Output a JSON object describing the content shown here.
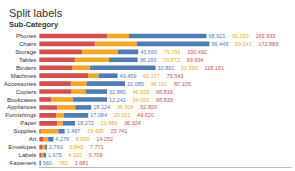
{
  "chart_data": {
    "type": "bar",
    "title": "Split labels",
    "subtitle": "Sub-Category",
    "orientation": "horizontal",
    "stacked": true,
    "categories": [
      "Phones",
      "Chairs",
      "Storage",
      "Tables",
      "Binders",
      "Machines",
      "Accessories",
      "Copiers",
      "Bookcases",
      "Appliances",
      "Furnishings",
      "Paper",
      "Supplies",
      "Art",
      "Envelopes",
      "Labels",
      "Fasteners"
    ],
    "series": [
      {
        "color": "#d4504e",
        "values": [
          68921,
          56445,
          43560,
          36160,
          33891,
          49459,
          32085,
          32880,
          12241,
          18124,
          17084,
          18272,
          1497,
          4276,
          2763,
          1675,
          560
        ]
      },
      {
        "color": "#f5a623",
        "values": [
          22232,
          42696,
          36231,
          34712,
          17669,
          10818,
          16106,
          13949,
          21765,
          18385,
          7917,
          5611,
          17938,
          4714,
          3080,
          2427,
          223
        ]
      },
      {
        "color": "#4e7db5",
        "values": [
          78780,
          73742,
          20701,
          29062,
          66601,
          19266,
          38914,
          21990,
          34827,
          16311,
          24619,
          12441,
          6306,
          5262,
          1928,
          2607,
          898
        ]
      }
    ],
    "annotations": [
      {
        "color": "#4e7db5",
        "labels": [
          "68.921",
          "56.445",
          "43.560",
          "36.160",
          "33.891",
          "49.459",
          "32.085",
          "32.880",
          "12.241",
          "18.124",
          "17.084",
          "18.272",
          "1.497",
          "4.276",
          "2.763",
          "1.675",
          "560"
        ]
      },
      {
        "color": "#f5a623",
        "labels": [
          "91.153",
          "99.141",
          "79.791",
          "70.872",
          "51.560",
          "60.277",
          "48.191",
          "46.829",
          "34.006",
          "36.509",
          "25.001",
          "23.883",
          "19.435",
          "8.990",
          "5.843",
          "4.102",
          "783"
        ]
      },
      {
        "color": "#d4504e",
        "labels": [
          "169.933",
          "172.883",
          "100.492",
          "99.934",
          "118.161",
          "79.543",
          "87.105",
          "68.819",
          "68.833",
          "52.820",
          "49.620",
          "36.324",
          "25.741",
          "14.252",
          "7.771",
          "6.709",
          "1.681"
        ]
      }
    ],
    "xlim": [
      0,
      255866.84
    ],
    "tick_labels": "y",
    "grid": false
  }
}
